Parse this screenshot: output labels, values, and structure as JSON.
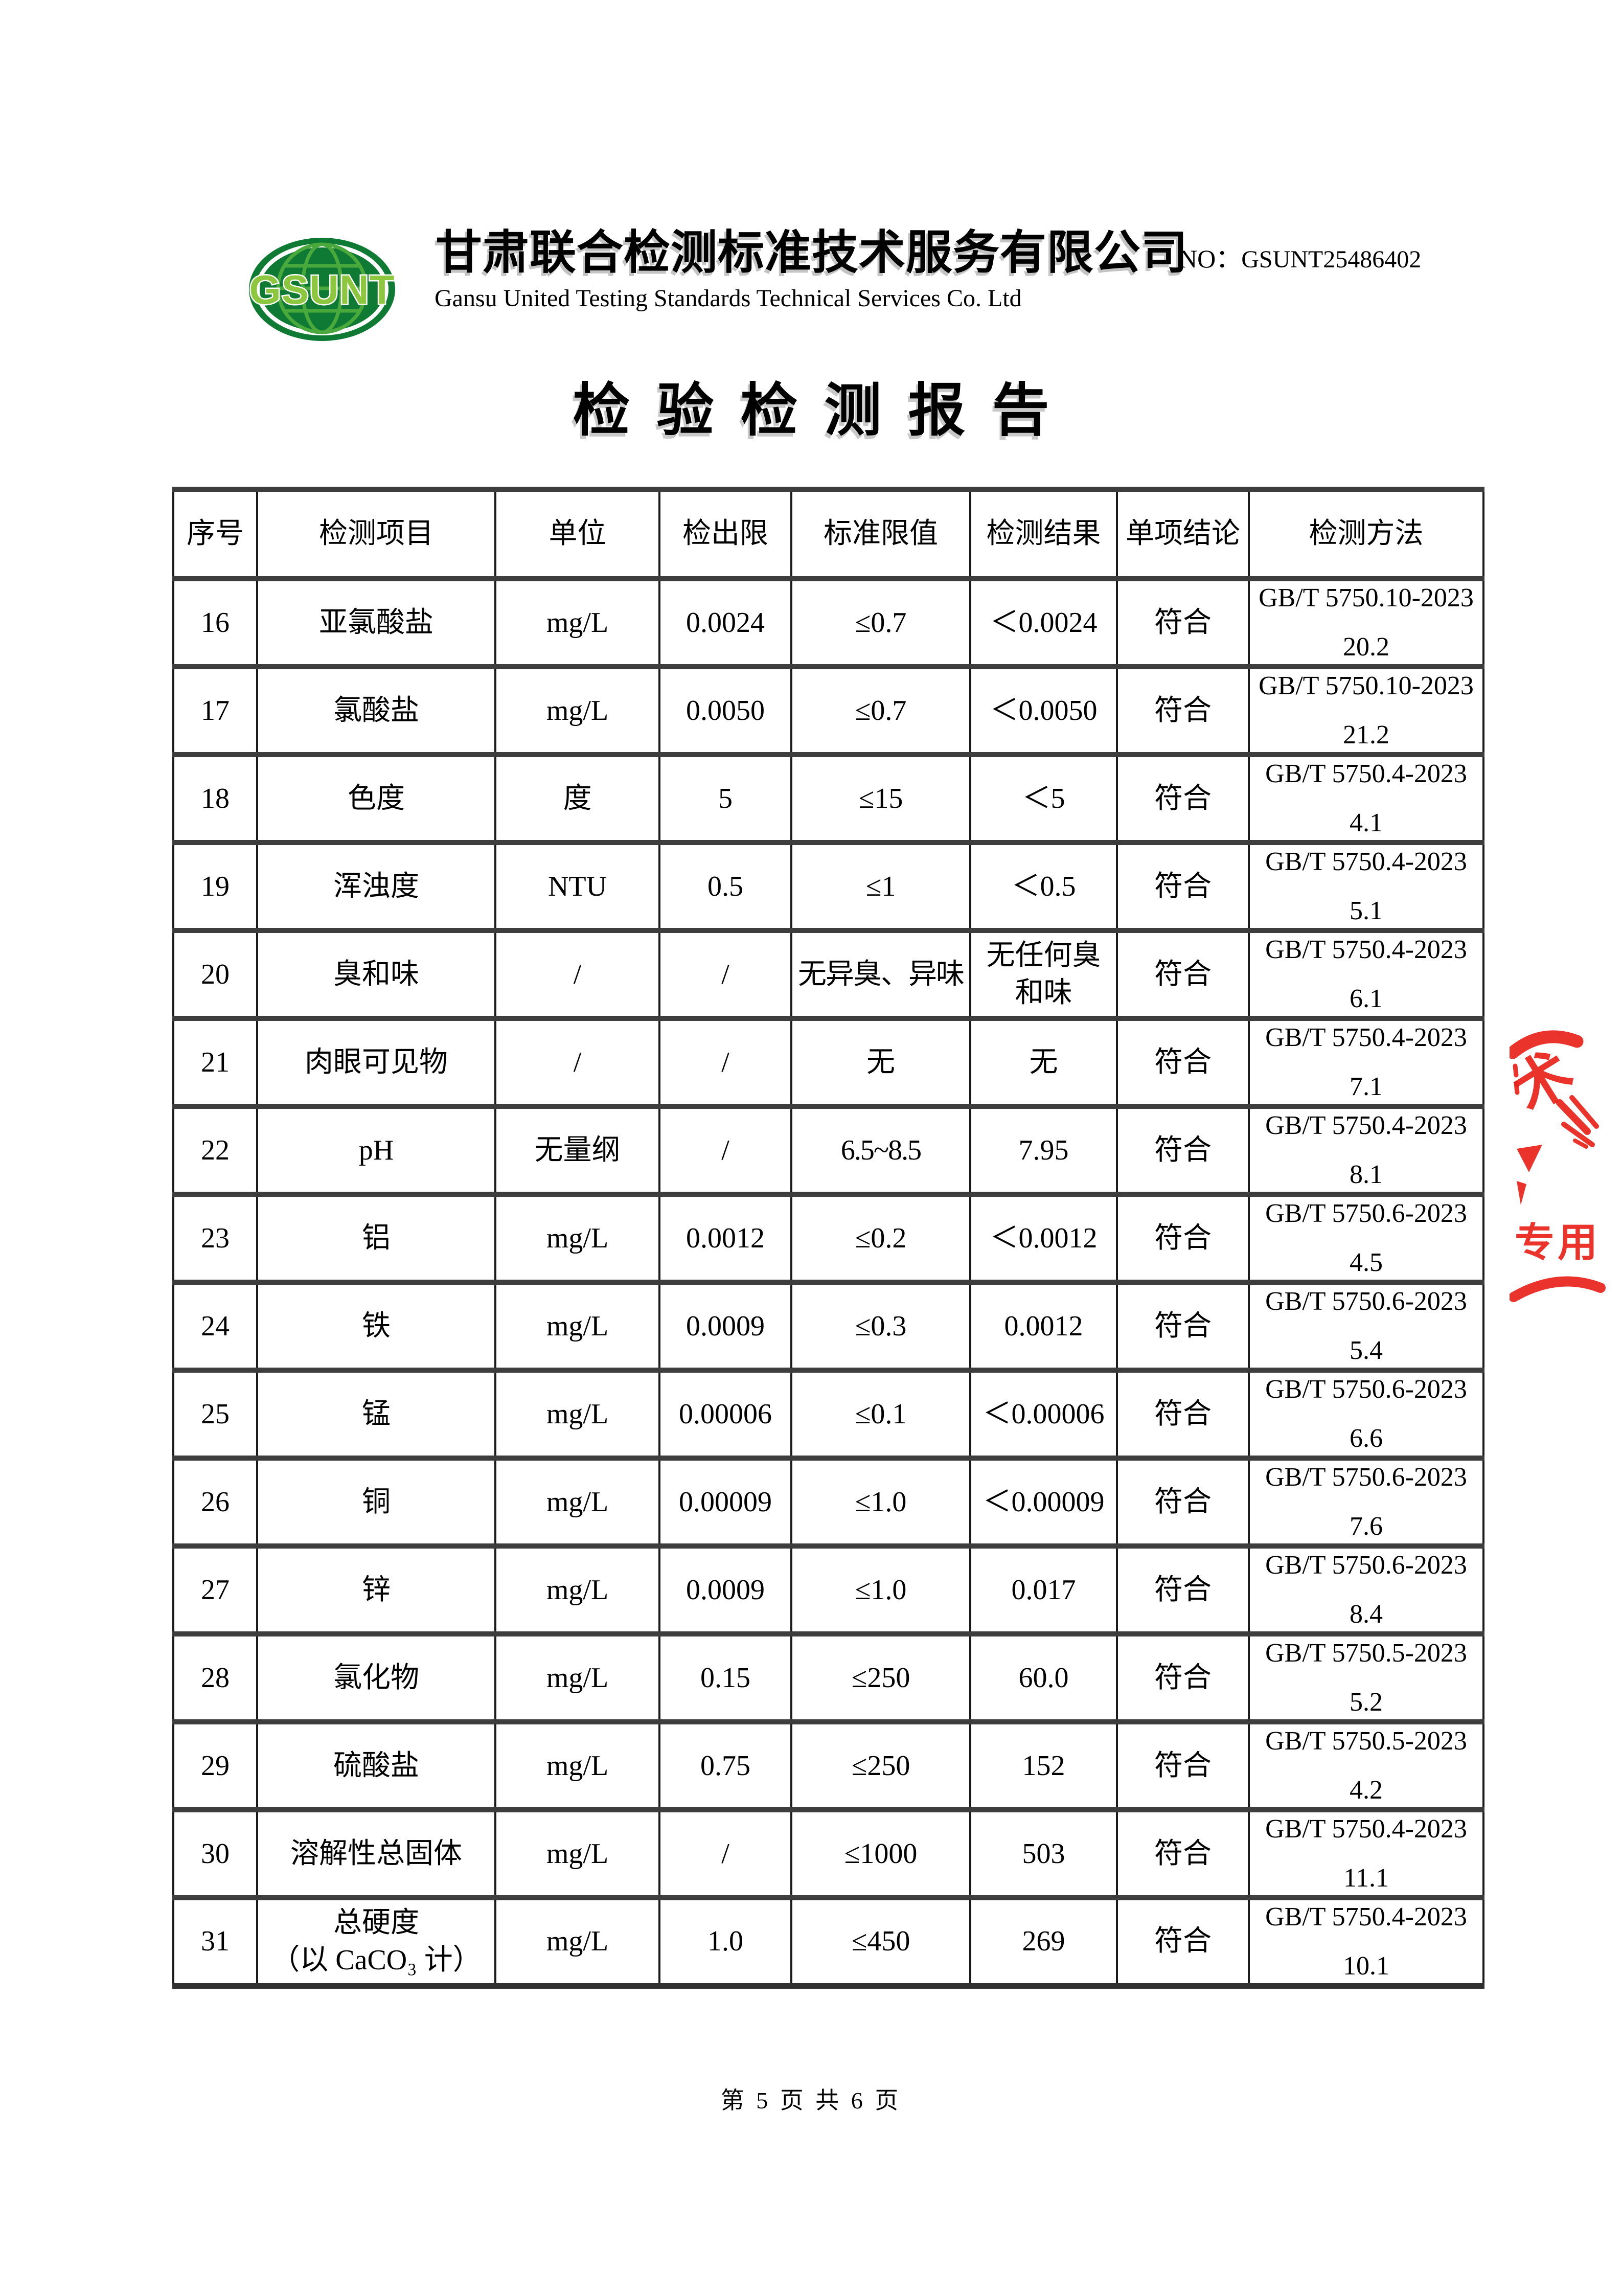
{
  "header": {
    "logo": {
      "text": "GSUNT",
      "dark_green": "#0f7a33",
      "light_green": "#8dc63f"
    },
    "company_name_cn": "甘肃联合检测标准技术服务有限公司",
    "company_name_en": "Gansu United Testing Standards Technical Services Co. Ltd",
    "report_no_label": "NO：",
    "report_no_value": "GSUNT25486402"
  },
  "title": "检验检测报告",
  "table": {
    "columns": [
      "序号",
      "检测项目",
      "单位",
      "检出限",
      "标准限值",
      "检测结果",
      "单项结论",
      "检测方法"
    ],
    "rows": [
      {
        "no": "16",
        "item": "亚氯酸盐",
        "unit": "mg/L",
        "lod": "0.0024",
        "limit": "≤0.7",
        "result": "＜0.0024",
        "conclusion": "符合",
        "method_std": "GB/T 5750.10-2023",
        "method_section": "20.2"
      },
      {
        "no": "17",
        "item": "氯酸盐",
        "unit": "mg/L",
        "lod": "0.0050",
        "limit": "≤0.7",
        "result": "＜0.0050",
        "conclusion": "符合",
        "method_std": "GB/T 5750.10-2023",
        "method_section": "21.2"
      },
      {
        "no": "18",
        "item": "色度",
        "unit": "度",
        "lod": "5",
        "limit": "≤15",
        "result": "＜5",
        "conclusion": "符合",
        "method_std": "GB/T 5750.4-2023",
        "method_section": "4.1"
      },
      {
        "no": "19",
        "item": "浑浊度",
        "unit": "NTU",
        "lod": "0.5",
        "limit": "≤1",
        "result": "＜0.5",
        "conclusion": "符合",
        "method_std": "GB/T 5750.4-2023",
        "method_section": "5.1"
      },
      {
        "no": "20",
        "item": "臭和味",
        "unit": "/",
        "lod": "/",
        "limit": "无异臭、异味",
        "result": "无任何臭\n和味",
        "conclusion": "符合",
        "method_std": "GB/T 5750.4-2023",
        "method_section": "6.1"
      },
      {
        "no": "21",
        "item": "肉眼可见物",
        "unit": "/",
        "lod": "/",
        "limit": "无",
        "result": "无",
        "conclusion": "符合",
        "method_std": "GB/T 5750.4-2023",
        "method_section": "7.1"
      },
      {
        "no": "22",
        "item": "pH",
        "unit": "无量纲",
        "lod": "/",
        "limit": "6.5~8.5",
        "result": "7.95",
        "conclusion": "符合",
        "method_std": "GB/T 5750.4-2023",
        "method_section": "8.1"
      },
      {
        "no": "23",
        "item": "铝",
        "unit": "mg/L",
        "lod": "0.0012",
        "limit": "≤0.2",
        "result": "＜0.0012",
        "conclusion": "符合",
        "method_std": "GB/T 5750.6-2023",
        "method_section": "4.5"
      },
      {
        "no": "24",
        "item": "铁",
        "unit": "mg/L",
        "lod": "0.0009",
        "limit": "≤0.3",
        "result": "0.0012",
        "conclusion": "符合",
        "method_std": "GB/T 5750.6-2023",
        "method_section": "5.4"
      },
      {
        "no": "25",
        "item": "锰",
        "unit": "mg/L",
        "lod": "0.00006",
        "limit": "≤0.1",
        "result": "＜0.00006",
        "conclusion": "符合",
        "method_std": "GB/T 5750.6-2023",
        "method_section": "6.6"
      },
      {
        "no": "26",
        "item": "铜",
        "unit": "mg/L",
        "lod": "0.00009",
        "limit": "≤1.0",
        "result": "＜0.00009",
        "conclusion": "符合",
        "method_std": "GB/T 5750.6-2023",
        "method_section": "7.6"
      },
      {
        "no": "27",
        "item": "锌",
        "unit": "mg/L",
        "lod": "0.0009",
        "limit": "≤1.0",
        "result": "0.017",
        "conclusion": "符合",
        "method_std": "GB/T 5750.6-2023",
        "method_section": "8.4"
      },
      {
        "no": "28",
        "item": "氯化物",
        "unit": "mg/L",
        "lod": "0.15",
        "limit": "≤250",
        "result": "60.0",
        "conclusion": "符合",
        "method_std": "GB/T 5750.5-2023",
        "method_section": "5.2"
      },
      {
        "no": "29",
        "item": "硫酸盐",
        "unit": "mg/L",
        "lod": "0.75",
        "limit": "≤250",
        "result": "152",
        "conclusion": "符合",
        "method_std": "GB/T 5750.5-2023",
        "method_section": "4.2"
      },
      {
        "no": "30",
        "item": "溶解性总固体",
        "unit": "mg/L",
        "lod": "/",
        "limit": "≤1000",
        "result": "503",
        "conclusion": "符合",
        "method_std": "GB/T 5750.4-2023",
        "method_section": "11.1"
      },
      {
        "no": "31",
        "item": "总硬度\n（以 CaCO₃ 计）",
        "unit": "mg/L",
        "lod": "1.0",
        "limit": "≤450",
        "result": "269",
        "conclusion": "符合",
        "method_std": "GB/T 5750.4-2023",
        "method_section": "10.1"
      }
    ]
  },
  "stamp": {
    "color": "#e8241c",
    "fragment_top": "术",
    "fragment_bottom": "专用"
  },
  "footer": {
    "page_indicator": "第 5 页 共 6 页"
  }
}
